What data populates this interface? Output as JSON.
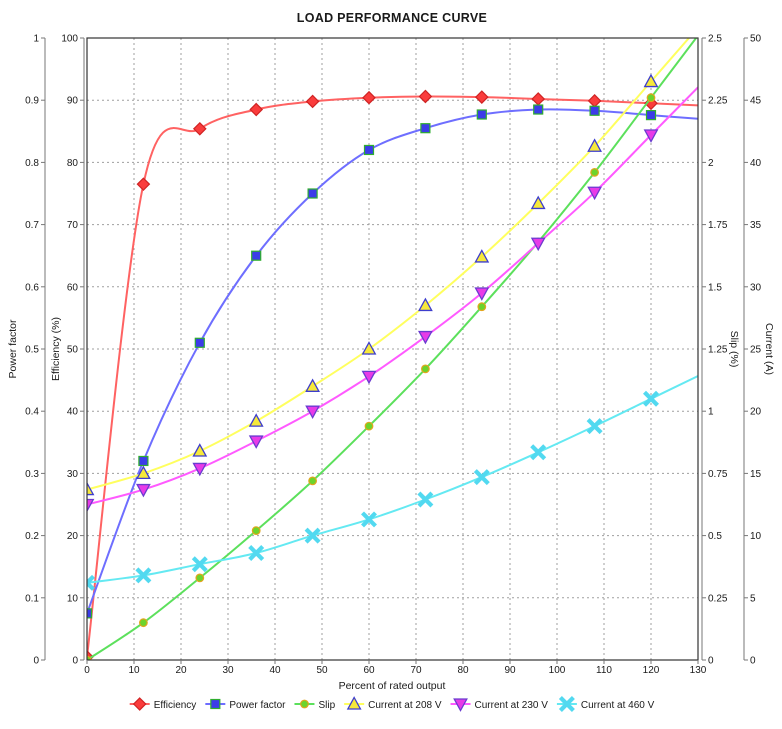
{
  "chart_data": {
    "type": "line",
    "title": "LOAD PERFORMANCE CURVE",
    "xlabel": "Percent of rated output",
    "grid": true,
    "legend_position": "bottom",
    "x_axis": {
      "min": 0,
      "max": 130,
      "step": 10
    },
    "y_axes": [
      {
        "id": "power_factor",
        "label": "Power factor",
        "min": 0,
        "max": 1,
        "step": 0.1,
        "side": "left"
      },
      {
        "id": "efficiency",
        "label": "Efficiency (%)",
        "min": 0,
        "max": 100,
        "step": 10,
        "side": "left"
      },
      {
        "id": "slip",
        "label": "Slip (%)",
        "min": 0,
        "max": 2.5,
        "step": 0.25,
        "side": "right"
      },
      {
        "id": "current",
        "label": "Current (A)",
        "min": 0,
        "max": 50,
        "step": 5,
        "side": "right"
      }
    ],
    "x": [
      0,
      12,
      24,
      36,
      48,
      60,
      72,
      84,
      96,
      108,
      120
    ],
    "series": [
      {
        "name": "Efficiency",
        "axis": "efficiency",
        "marker": "diamond",
        "line_color": "#ff6262",
        "fill": "#fa3c3c",
        "outline": "#cf2323",
        "values": [
          0.5,
          76.5,
          85.4,
          88.5,
          89.8,
          90.4,
          90.6,
          90.5,
          90.2,
          89.9,
          89.5
        ]
      },
      {
        "name": "Power factor",
        "axis": "power_factor",
        "marker": "square",
        "line_color": "#6e6eff",
        "fill": "#3c3ce8",
        "outline": "#2fae2f",
        "values": [
          0.075,
          0.32,
          0.51,
          0.65,
          0.75,
          0.82,
          0.855,
          0.877,
          0.885,
          0.883,
          0.876
        ]
      },
      {
        "name": "Slip",
        "axis": "slip",
        "marker": "circle",
        "line_color": "#5ce05c",
        "fill": "#6cd42c",
        "outline": "#e2a51d",
        "values": [
          0,
          0.15,
          0.33,
          0.52,
          0.72,
          0.94,
          1.17,
          1.42,
          1.68,
          1.96,
          2.26
        ]
      },
      {
        "name": "Current at 208 V",
        "axis": "current",
        "marker": "triangle-up",
        "line_color": "#ffff5e",
        "fill": "#f6e93a",
        "outline": "#3d3dcd",
        "values": [
          13.7,
          15.0,
          16.8,
          19.2,
          22.0,
          25.0,
          28.5,
          32.4,
          36.7,
          41.3,
          46.5
        ]
      },
      {
        "name": "Current at 230 V",
        "axis": "current",
        "marker": "triangle-down",
        "line_color": "#ff5aff",
        "fill": "#e83ae8",
        "outline": "#6a3bd0",
        "values": [
          12.5,
          13.7,
          15.4,
          17.6,
          20.0,
          22.8,
          26.0,
          29.5,
          33.5,
          37.6,
          42.2
        ]
      },
      {
        "name": "Current at 460 V",
        "axis": "current",
        "marker": "x",
        "line_color": "#64e9f2",
        "fill": "#52d9f0",
        "outline": "#52d9f0",
        "values": [
          6.2,
          6.8,
          7.7,
          8.6,
          10.0,
          11.3,
          12.9,
          14.7,
          16.7,
          18.8,
          21.0
        ]
      }
    ]
  }
}
